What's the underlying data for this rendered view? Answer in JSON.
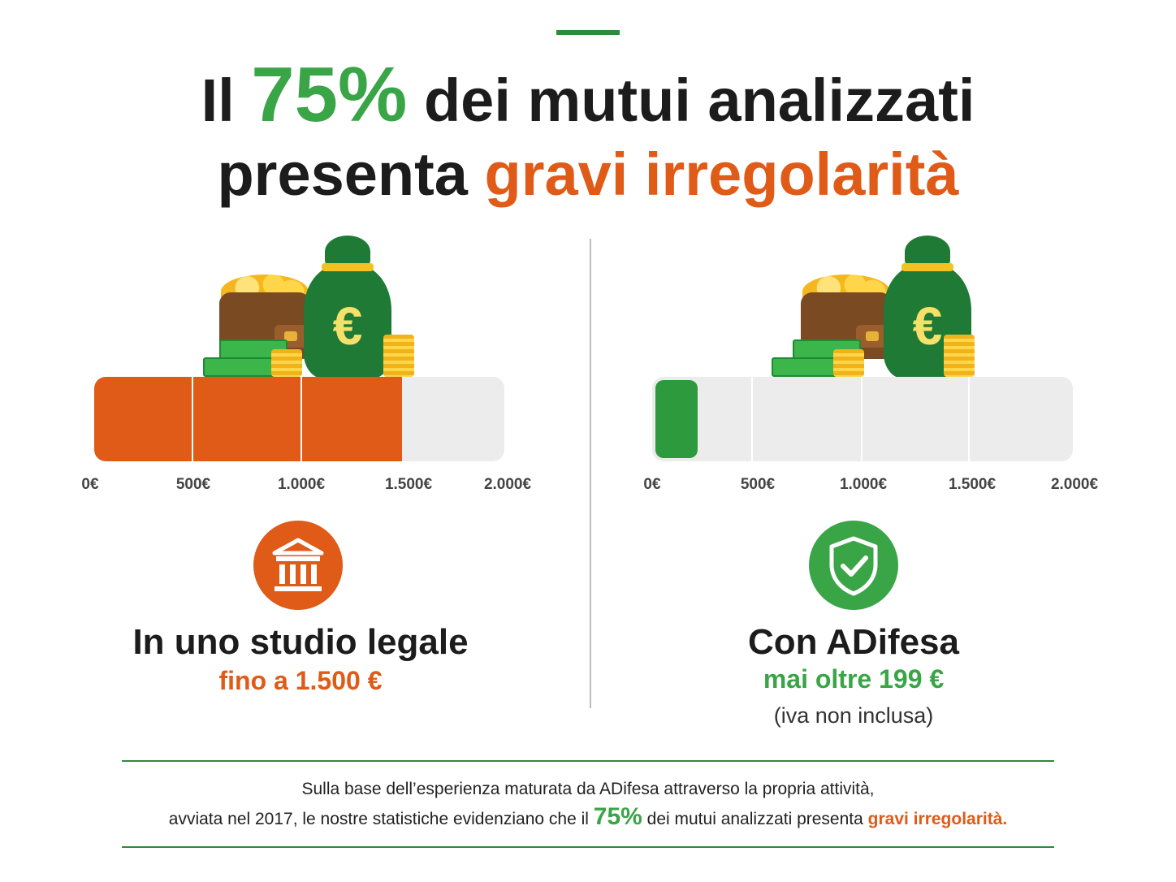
{
  "headline": {
    "line1_prefix": "Il",
    "line1_percent": "75%",
    "line1_suffix": "dei mutui analizzati",
    "line2_prefix": "presenta",
    "line2_highlight": "gravi irregolarità"
  },
  "currency_symbol": "€",
  "left_panel": {
    "scale_ticks": [
      "0€",
      "500€",
      "1.000€",
      "1.500€",
      "2.000€"
    ],
    "fill_value": 1500,
    "scale_max": 2000,
    "icon": "bank-icon",
    "title": "In uno studio legale",
    "subtitle": "fino a 1.500 €"
  },
  "right_panel": {
    "scale_ticks": [
      "0€",
      "500€",
      "1.000€",
      "1.500€",
      "2.000€"
    ],
    "fill_value": 199,
    "scale_max": 2000,
    "icon": "shield-check-icon",
    "title": "Con ADifesa",
    "subtitle": "mai oltre 199 €",
    "note": "(iva non inclusa)"
  },
  "footer": {
    "line1": "Sulla base dell’esperienza maturata da ADifesa attraverso la propria attività,",
    "line2_prefix": "avviata nel 2017, le nostre statistiche evidenziano che il",
    "line2_percent": "75%",
    "line2_middle": "dei mutui analizzati presenta",
    "line2_highlight": "gravi irregolarità."
  },
  "colors": {
    "green": "#3aa547",
    "orange": "#e05a18",
    "track": "#ececec"
  }
}
